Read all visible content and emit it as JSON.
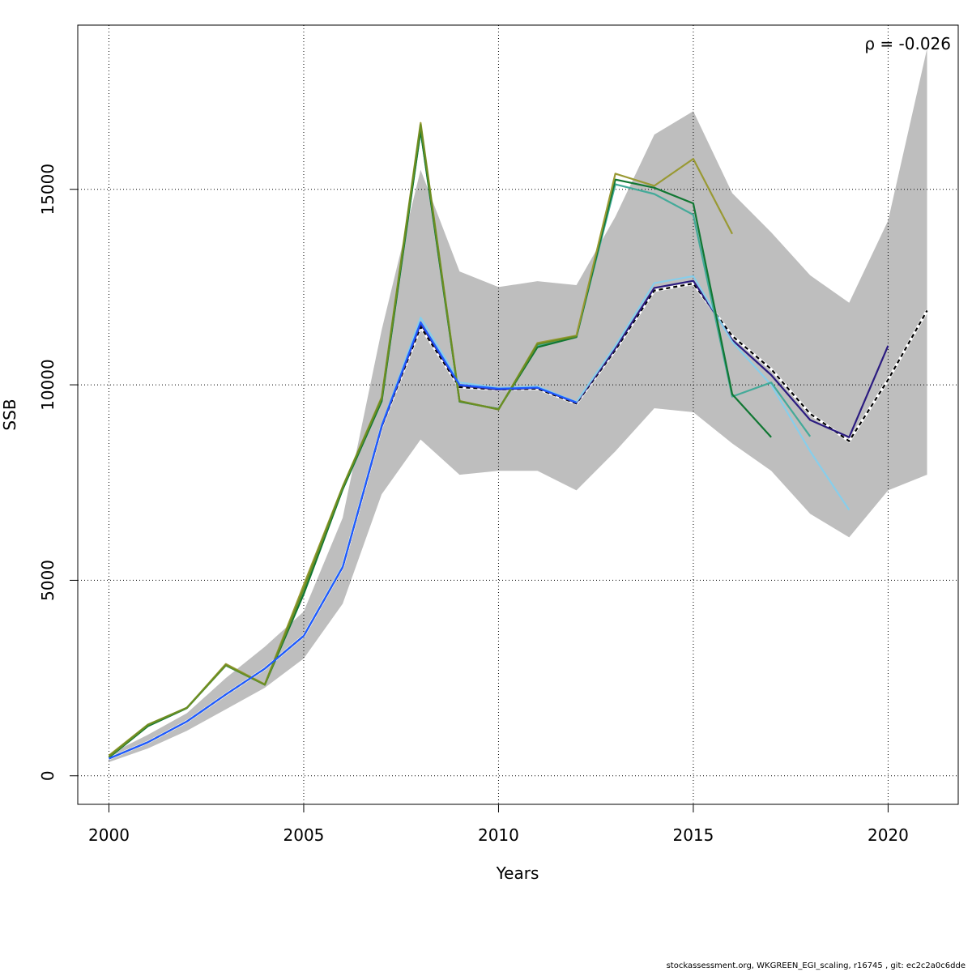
{
  "chart_data": {
    "type": "line",
    "title": "",
    "xlabel": "Years",
    "ylabel": "SSB",
    "xlim": [
      1999.2,
      2021.8
    ],
    "ylim": [
      -730,
      19200
    ],
    "x_ticks": [
      "2000",
      "2005",
      "2010",
      "2015",
      "2020"
    ],
    "y_ticks": [
      "0",
      "5000",
      "10000",
      "15000"
    ],
    "grid": true,
    "annotation": "ρ = -0.026",
    "band": {
      "x": [
        2000,
        2001,
        2002,
        2003,
        2004,
        2005,
        2006,
        2007,
        2008,
        2009,
        2010,
        2011,
        2012,
        2013,
        2014,
        2015,
        2016,
        2017,
        2018,
        2019,
        2020,
        2021
      ],
      "lower": [
        350,
        700,
        1150,
        1700,
        2250,
        3000,
        4400,
        7200,
        8600,
        7700,
        7800,
        7800,
        7300,
        8300,
        9400,
        9300,
        8500,
        7800,
        6700,
        6100,
        7300,
        7700
      ],
      "upper": [
        550,
        1050,
        1600,
        2500,
        3300,
        4200,
        6600,
        11400,
        15500,
        12900,
        12500,
        12650,
        12550,
        14300,
        16400,
        17000,
        14900,
        13900,
        12800,
        12100,
        14200,
        18600
      ],
      "color": "#bebebe"
    },
    "series": [
      {
        "color": "#000000",
        "dashed": true,
        "x": [
          2000,
          2001,
          2002,
          2003,
          2004,
          2005,
          2006,
          2007,
          2008,
          2009,
          2010,
          2011,
          2012,
          2013,
          2014,
          2015,
          2016,
          2017,
          2018,
          2019,
          2020,
          2021
        ],
        "values": [
          440,
          860,
          1390,
          2080,
          2740,
          3580,
          5340,
          8930,
          11480,
          9940,
          9880,
          9900,
          9520,
          10890,
          12410,
          12590,
          11250,
          10400,
          9260,
          8560,
          10130,
          11900
        ]
      },
      {
        "color": "#2b1b80",
        "dashed": false,
        "x": [
          2000,
          2001,
          2002,
          2003,
          2004,
          2005,
          2006,
          2007,
          2008,
          2009,
          2010,
          2011,
          2012,
          2013,
          2014,
          2015,
          2016,
          2017,
          2018,
          2019,
          2020
        ],
        "values": [
          440,
          860,
          1390,
          2080,
          2740,
          3580,
          5340,
          8930,
          11560,
          9980,
          9880,
          9920,
          9540,
          10930,
          12480,
          12660,
          11150,
          10250,
          9100,
          8660,
          11000
        ]
      },
      {
        "color": "#87ceeb",
        "dashed": false,
        "x": [
          2000,
          2001,
          2002,
          2003,
          2004,
          2005,
          2006,
          2007,
          2008,
          2009,
          2010,
          2011,
          2012,
          2013,
          2014,
          2015,
          2016,
          2017,
          2018,
          2019
        ],
        "values": [
          440,
          860,
          1390,
          2080,
          2740,
          3580,
          5360,
          8960,
          11720,
          10060,
          9920,
          9960,
          9560,
          11000,
          12600,
          12780,
          11100,
          10000,
          8300,
          6800
        ]
      },
      {
        "color": "#44aa99",
        "dashed": false,
        "x": [
          2000,
          2001,
          2002,
          2003,
          2004,
          2005,
          2006,
          2007,
          2008,
          2009,
          2010,
          2011,
          2012,
          2013,
          2014,
          2015,
          2016,
          2017,
          2018
        ],
        "values": [
          470,
          1280,
          1740,
          2820,
          2330,
          4750,
          7330,
          9590,
          16500,
          9570,
          9380,
          11000,
          11230,
          15130,
          14880,
          14350,
          9700,
          10060,
          8680
        ]
      },
      {
        "color": "#117733",
        "dashed": false,
        "x": [
          2000,
          2001,
          2002,
          2003,
          2004,
          2005,
          2006,
          2007,
          2008,
          2009,
          2010,
          2011,
          2012,
          2013,
          2014,
          2015,
          2016,
          2017
        ],
        "values": [
          470,
          1270,
          1730,
          2830,
          2330,
          4650,
          7330,
          9580,
          16500,
          9570,
          9380,
          10960,
          11220,
          15250,
          15040,
          14640,
          9760,
          8660
        ]
      },
      {
        "color": "#999933",
        "dashed": false,
        "x": [
          2000,
          2001,
          2002,
          2003,
          2004,
          2005,
          2006,
          2007,
          2008,
          2009,
          2010,
          2011,
          2012,
          2013,
          2014,
          2015,
          2016
        ],
        "values": [
          520,
          1310,
          1740,
          2860,
          2340,
          4880,
          7400,
          9680,
          16700,
          9590,
          9370,
          11070,
          11260,
          15400,
          15090,
          15780,
          13860
        ]
      },
      {
        "color": "#6b8e23",
        "dashed": false,
        "x": [
          2000,
          2001,
          2002,
          2003,
          2004,
          2005,
          2006,
          2007,
          2008,
          2009,
          2010,
          2011,
          2012
        ],
        "values": [
          490,
          1300,
          1740,
          2830,
          2330,
          4780,
          7380,
          9650,
          16650,
          9580,
          9370,
          11040,
          11240
        ]
      },
      {
        "color": "#1e5aff",
        "dashed": false,
        "x": [
          2000,
          2001,
          2002,
          2003,
          2004,
          2005,
          2006,
          2007,
          2008,
          2009,
          2010,
          2011,
          2012
        ],
        "values": [
          440,
          860,
          1390,
          2080,
          2740,
          3580,
          5340,
          8950,
          11600,
          10000,
          9900,
          9930,
          9550
        ]
      }
    ]
  },
  "footer": "stockassessment.org, WKGREEN_EGI_scaling, r16745 , git: ec2c2a0c6dde"
}
